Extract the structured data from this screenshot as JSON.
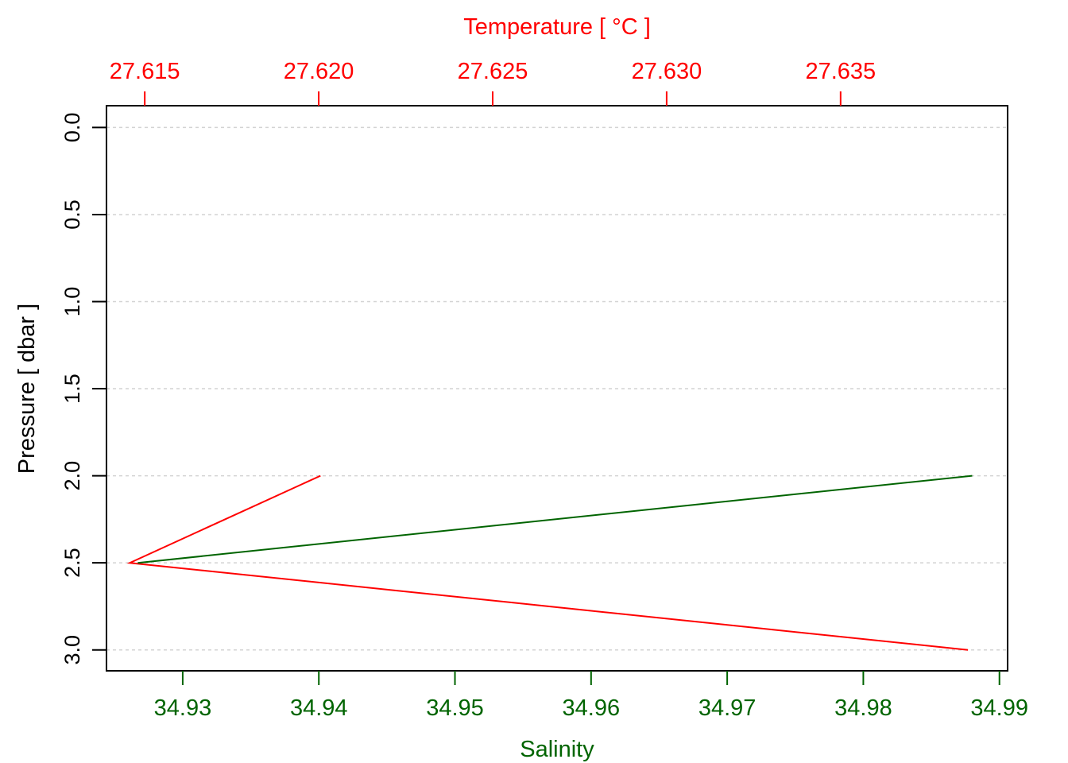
{
  "chart_data": {
    "type": "line",
    "top_axis": {
      "label": "Temperature [ °C ]",
      "ticks": [
        27.615,
        27.62,
        27.625,
        27.63,
        27.635
      ],
      "tick_labels": [
        "27.615",
        "27.620",
        "27.625",
        "27.630",
        "27.635"
      ],
      "range": [
        27.6139,
        27.6398
      ],
      "color": "#ff0000"
    },
    "bottom_axis": {
      "label": "Salinity",
      "ticks": [
        34.93,
        34.94,
        34.95,
        34.96,
        34.97,
        34.98,
        34.99
      ],
      "tick_labels": [
        "34.93",
        "34.94",
        "34.95",
        "34.96",
        "34.97",
        "34.98",
        "34.99"
      ],
      "range": [
        34.9244,
        34.9906
      ],
      "color": "#006400"
    },
    "y_axis": {
      "label": "Pressure [ dbar ]",
      "ticks": [
        0.0,
        0.5,
        1.0,
        1.5,
        2.0,
        2.5,
        3.0
      ],
      "tick_labels": [
        "0.0",
        "0.5",
        "1.0",
        "1.5",
        "2.0",
        "2.5",
        "3.0"
      ],
      "range": [
        -0.125,
        3.12
      ],
      "inverted": true
    },
    "grid": true,
    "series": [
      {
        "axis": "top",
        "color": "#ff0000",
        "points": [
          [
            27.62005,
            2.0
          ],
          [
            27.61457,
            2.5
          ],
          [
            27.63866,
            3.0
          ]
        ]
      },
      {
        "axis": "bottom",
        "color": "#006400",
        "points": [
          [
            34.988,
            2.0
          ],
          [
            34.9267,
            2.5
          ]
        ]
      }
    ]
  }
}
